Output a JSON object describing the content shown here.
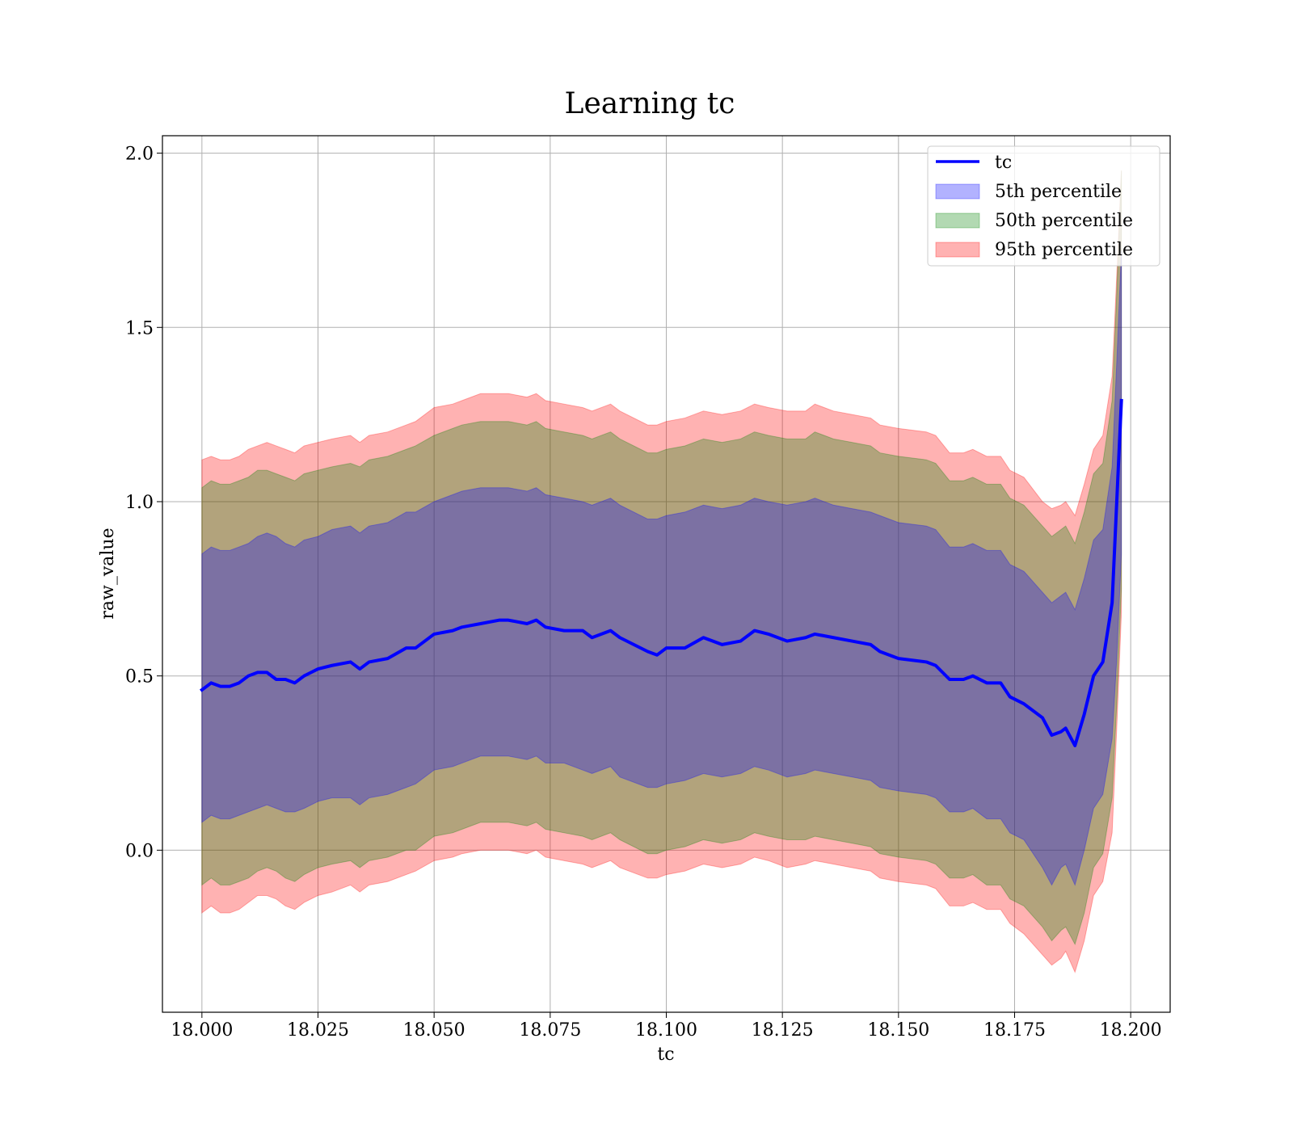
{
  "chart_data": {
    "type": "area",
    "title": "Learning tc",
    "xlabel": "tc",
    "ylabel": "raw_value",
    "xlim": [
      17.9915,
      18.2085
    ],
    "ylim": [
      -0.465,
      2.05
    ],
    "x_ticks": [
      18.0,
      18.025,
      18.05,
      18.075,
      18.1,
      18.125,
      18.15,
      18.175,
      18.2
    ],
    "x_tick_labels": [
      "18.000",
      "18.025",
      "18.050",
      "18.075",
      "18.100",
      "18.125",
      "18.150",
      "18.175",
      "18.200"
    ],
    "y_ticks": [
      0.0,
      0.5,
      1.0,
      1.5,
      2.0
    ],
    "y_tick_labels": [
      "0.0",
      "0.5",
      "1.0",
      "1.5",
      "2.0"
    ],
    "grid": true,
    "legend_position": "top-right",
    "colors": {
      "line": "#0000ff",
      "band_5th": "#0000ff",
      "band_50th": "#008000",
      "band_95th": "#ff0000"
    },
    "x": [
      18.0,
      18.002,
      18.004,
      18.006,
      18.008,
      18.01,
      18.012,
      18.014,
      18.016,
      18.018,
      18.02,
      18.022,
      18.025,
      18.028,
      18.032,
      18.034,
      18.036,
      18.04,
      18.044,
      18.046,
      18.05,
      18.054,
      18.056,
      18.06,
      18.064,
      18.066,
      18.07,
      18.072,
      18.074,
      18.078,
      18.082,
      18.084,
      18.088,
      18.09,
      18.096,
      18.098,
      18.1,
      18.104,
      18.108,
      18.112,
      18.116,
      18.119,
      18.122,
      18.126,
      18.13,
      18.132,
      18.136,
      18.14,
      18.144,
      18.146,
      18.15,
      18.156,
      18.158,
      18.161,
      18.164,
      18.166,
      18.169,
      18.172,
      18.174,
      18.177,
      18.181,
      18.183,
      18.185,
      18.186,
      18.188,
      18.19,
      18.192,
      18.194,
      18.196,
      18.197,
      18.198
    ],
    "series": [
      {
        "name": "tc",
        "type": "line",
        "values": [
          0.46,
          0.48,
          0.47,
          0.47,
          0.48,
          0.5,
          0.51,
          0.51,
          0.49,
          0.49,
          0.48,
          0.5,
          0.52,
          0.53,
          0.54,
          0.52,
          0.54,
          0.55,
          0.58,
          0.58,
          0.62,
          0.63,
          0.64,
          0.65,
          0.66,
          0.66,
          0.65,
          0.66,
          0.64,
          0.63,
          0.63,
          0.61,
          0.63,
          0.61,
          0.57,
          0.56,
          0.58,
          0.58,
          0.61,
          0.59,
          0.6,
          0.63,
          0.62,
          0.6,
          0.61,
          0.62,
          0.61,
          0.6,
          0.59,
          0.57,
          0.55,
          0.54,
          0.53,
          0.49,
          0.49,
          0.5,
          0.48,
          0.48,
          0.44,
          0.42,
          0.38,
          0.33,
          0.34,
          0.35,
          0.3,
          0.39,
          0.5,
          0.54,
          0.71,
          1.0,
          1.29
        ]
      },
      {
        "name": "5th percentile",
        "type": "band",
        "lower": [
          0.08,
          0.1,
          0.09,
          0.09,
          0.1,
          0.11,
          0.12,
          0.13,
          0.12,
          0.11,
          0.11,
          0.12,
          0.14,
          0.15,
          0.15,
          0.13,
          0.15,
          0.16,
          0.18,
          0.19,
          0.23,
          0.24,
          0.25,
          0.27,
          0.27,
          0.27,
          0.26,
          0.27,
          0.25,
          0.25,
          0.23,
          0.22,
          0.24,
          0.21,
          0.18,
          0.18,
          0.19,
          0.2,
          0.22,
          0.21,
          0.22,
          0.24,
          0.23,
          0.21,
          0.22,
          0.23,
          0.22,
          0.21,
          0.2,
          0.18,
          0.17,
          0.16,
          0.15,
          0.11,
          0.11,
          0.12,
          0.09,
          0.09,
          0.05,
          0.03,
          -0.05,
          -0.1,
          -0.05,
          -0.04,
          -0.1,
          0.0,
          0.12,
          0.16,
          0.32,
          0.55,
          0.85
        ],
        "upper": [
          0.85,
          0.87,
          0.86,
          0.86,
          0.87,
          0.88,
          0.9,
          0.91,
          0.9,
          0.88,
          0.87,
          0.89,
          0.9,
          0.92,
          0.93,
          0.91,
          0.93,
          0.94,
          0.97,
          0.97,
          1.0,
          1.02,
          1.03,
          1.04,
          1.04,
          1.04,
          1.03,
          1.04,
          1.02,
          1.01,
          1.0,
          0.99,
          1.01,
          0.99,
          0.95,
          0.95,
          0.96,
          0.97,
          0.99,
          0.98,
          0.99,
          1.01,
          1.0,
          0.99,
          1.0,
          1.01,
          0.99,
          0.98,
          0.97,
          0.96,
          0.94,
          0.93,
          0.92,
          0.87,
          0.87,
          0.88,
          0.86,
          0.86,
          0.82,
          0.8,
          0.74,
          0.71,
          0.73,
          0.74,
          0.69,
          0.78,
          0.89,
          0.92,
          1.1,
          1.4,
          1.72
        ]
      },
      {
        "name": "50th percentile",
        "type": "band",
        "lower": [
          -0.1,
          -0.08,
          -0.1,
          -0.1,
          -0.09,
          -0.08,
          -0.06,
          -0.05,
          -0.06,
          -0.08,
          -0.09,
          -0.07,
          -0.05,
          -0.04,
          -0.03,
          -0.05,
          -0.03,
          -0.02,
          0.0,
          0.0,
          0.04,
          0.05,
          0.06,
          0.08,
          0.08,
          0.08,
          0.07,
          0.08,
          0.06,
          0.05,
          0.04,
          0.03,
          0.05,
          0.03,
          -0.01,
          -0.01,
          0.0,
          0.01,
          0.03,
          0.02,
          0.03,
          0.05,
          0.04,
          0.03,
          0.03,
          0.04,
          0.03,
          0.02,
          0.01,
          -0.01,
          -0.02,
          -0.03,
          -0.04,
          -0.08,
          -0.08,
          -0.07,
          -0.1,
          -0.1,
          -0.14,
          -0.16,
          -0.22,
          -0.26,
          -0.23,
          -0.22,
          -0.27,
          -0.18,
          -0.05,
          -0.01,
          0.15,
          0.42,
          0.75
        ],
        "upper": [
          1.04,
          1.06,
          1.05,
          1.05,
          1.06,
          1.07,
          1.09,
          1.09,
          1.08,
          1.07,
          1.06,
          1.08,
          1.09,
          1.1,
          1.11,
          1.1,
          1.12,
          1.13,
          1.15,
          1.16,
          1.19,
          1.21,
          1.22,
          1.23,
          1.23,
          1.23,
          1.22,
          1.23,
          1.21,
          1.2,
          1.19,
          1.18,
          1.2,
          1.18,
          1.14,
          1.14,
          1.15,
          1.16,
          1.18,
          1.17,
          1.18,
          1.2,
          1.19,
          1.18,
          1.18,
          1.2,
          1.18,
          1.17,
          1.16,
          1.14,
          1.13,
          1.12,
          1.11,
          1.06,
          1.06,
          1.07,
          1.05,
          1.05,
          1.01,
          0.99,
          0.93,
          0.9,
          0.92,
          0.93,
          0.88,
          0.97,
          1.08,
          1.11,
          1.29,
          1.6,
          1.95
        ]
      },
      {
        "name": "95th percentile",
        "type": "band",
        "lower": [
          -0.18,
          -0.16,
          -0.18,
          -0.18,
          -0.17,
          -0.15,
          -0.13,
          -0.13,
          -0.14,
          -0.16,
          -0.17,
          -0.15,
          -0.13,
          -0.12,
          -0.1,
          -0.12,
          -0.1,
          -0.09,
          -0.07,
          -0.06,
          -0.03,
          -0.02,
          -0.01,
          0.0,
          0.0,
          0.0,
          -0.01,
          0.0,
          -0.02,
          -0.03,
          -0.04,
          -0.05,
          -0.03,
          -0.05,
          -0.08,
          -0.08,
          -0.07,
          -0.06,
          -0.04,
          -0.05,
          -0.04,
          -0.02,
          -0.03,
          -0.05,
          -0.04,
          -0.03,
          -0.04,
          -0.05,
          -0.06,
          -0.08,
          -0.09,
          -0.1,
          -0.11,
          -0.16,
          -0.16,
          -0.15,
          -0.17,
          -0.17,
          -0.21,
          -0.24,
          -0.3,
          -0.33,
          -0.31,
          -0.29,
          -0.35,
          -0.26,
          -0.13,
          -0.09,
          0.05,
          0.35,
          0.68
        ],
        "upper": [
          1.12,
          1.13,
          1.12,
          1.12,
          1.13,
          1.15,
          1.16,
          1.17,
          1.16,
          1.15,
          1.14,
          1.16,
          1.17,
          1.18,
          1.19,
          1.17,
          1.19,
          1.2,
          1.22,
          1.23,
          1.27,
          1.28,
          1.29,
          1.31,
          1.31,
          1.31,
          1.3,
          1.31,
          1.29,
          1.28,
          1.27,
          1.26,
          1.28,
          1.26,
          1.22,
          1.22,
          1.23,
          1.24,
          1.26,
          1.25,
          1.26,
          1.28,
          1.27,
          1.26,
          1.26,
          1.28,
          1.26,
          1.25,
          1.24,
          1.22,
          1.21,
          1.2,
          1.19,
          1.14,
          1.14,
          1.15,
          1.13,
          1.13,
          1.09,
          1.07,
          1.0,
          0.98,
          0.99,
          1.0,
          0.96,
          1.05,
          1.15,
          1.19,
          1.36,
          1.65,
          1.95
        ]
      }
    ]
  }
}
